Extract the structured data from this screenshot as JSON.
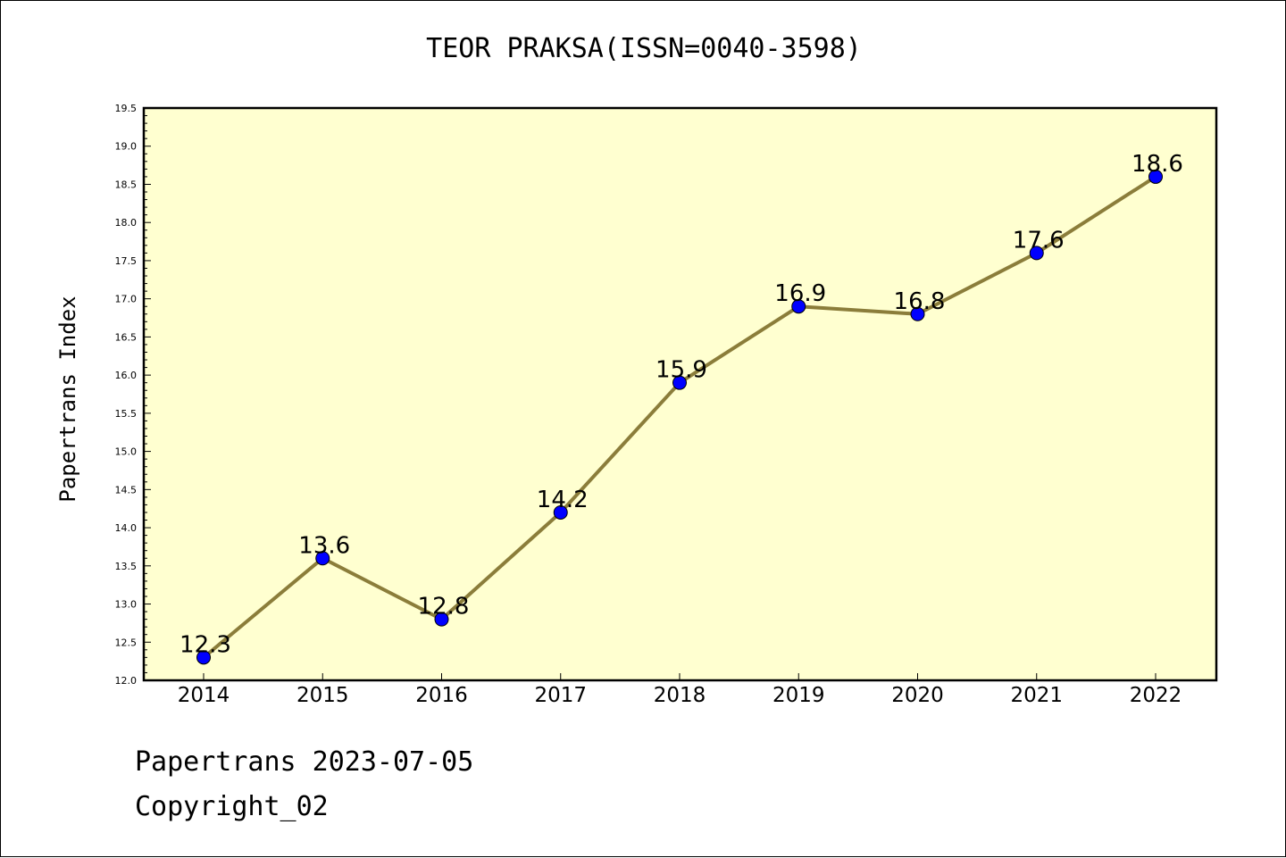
{
  "chart_data": {
    "type": "line",
    "title": "TEOR PRAKSA(ISSN=0040-3598)",
    "xlabel": "",
    "ylabel": "Papertrans Index",
    "categories": [
      "2014",
      "2015",
      "2016",
      "2017",
      "2018",
      "2019",
      "2020",
      "2021",
      "2022"
    ],
    "values": [
      12.3,
      13.6,
      12.8,
      14.2,
      15.9,
      16.9,
      16.8,
      17.6,
      18.6
    ],
    "data_labels": [
      "12.3",
      "13.6",
      "12.8",
      "14.2",
      "15.9",
      "16.9",
      "16.8",
      "17.6",
      "18.6"
    ],
    "ylim": [
      12.0,
      19.5
    ],
    "yticks": [
      "12.0",
      "12.5",
      "13.0",
      "13.5",
      "14.0",
      "14.5",
      "15.0",
      "15.5",
      "16.0",
      "16.5",
      "17.0",
      "17.5",
      "18.0",
      "18.5",
      "19.0",
      "19.5"
    ],
    "grid": false,
    "legend": "none",
    "colors": {
      "plot_background": "#ffffd0",
      "line": "#8b7d3a",
      "marker": "#0000ff"
    }
  },
  "footer": {
    "line1": "Papertrans 2023-07-05",
    "line2": "Copyright_02"
  }
}
